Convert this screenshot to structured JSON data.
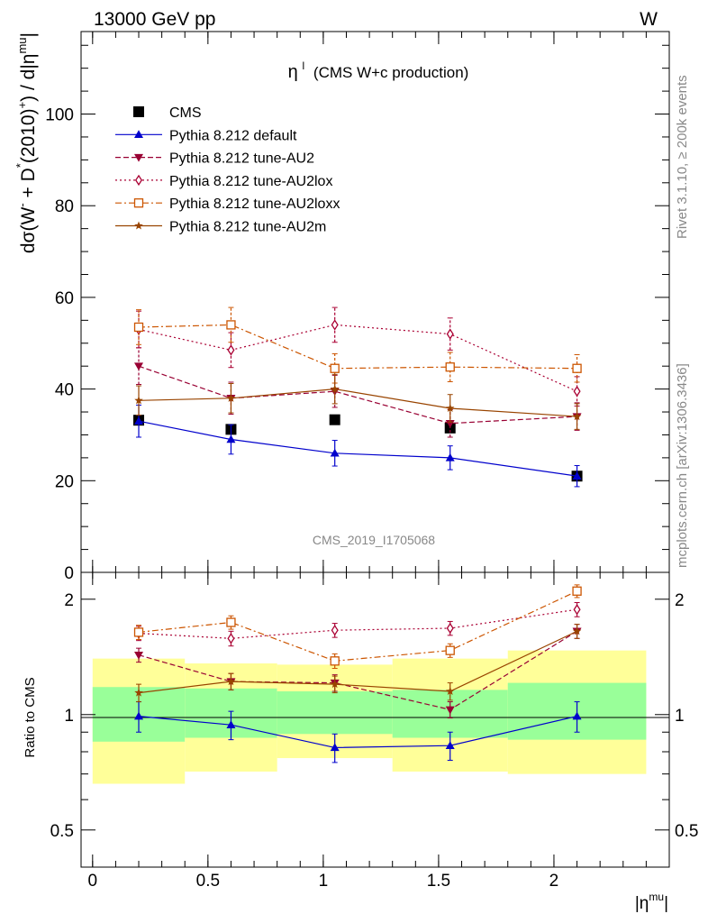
{
  "header": {
    "left": "13000 GeV pp",
    "right": "W"
  },
  "side": {
    "rivet": "Rivet 3.1.10, ≥ 200k events",
    "mcplots": "mcplots.cern.ch [arXiv:1306.3436]"
  },
  "watermark": "CMS_2019_I1705068",
  "colors": {
    "cms": "#000000",
    "default": "#0000cc",
    "au2": "#990033",
    "au2lox": "#aa0033",
    "au2loxx": "#cc5500",
    "au2m": "#994400",
    "band1": "#99ff99",
    "band2": "#ffff99"
  },
  "chart_data": [
    {
      "type": "line",
      "title": "η",
      "title_sup": "l",
      "title_rest": "(CMS W+c production)",
      "ylabel": "dσ(W⁻ + D*(2010)⁺) / d|η^mu|",
      "ylabel_parts": {
        "a": "dσ(W",
        "a_sup": "-",
        "b": " + D",
        "b_sup": "*",
        "c": "(2010)",
        "c_sup": "+",
        "d": ") / d|η",
        "d_sup": "mu",
        "e": "|"
      },
      "ylim": [
        0,
        118
      ],
      "yticks": [
        0,
        20,
        40,
        60,
        80,
        100
      ],
      "legend_position": "top-left",
      "series": [
        {
          "name": "CMS",
          "key": "cms",
          "marker": "square",
          "x": [
            0.2,
            0.6,
            1.05,
            1.55,
            2.1
          ],
          "y": [
            33.2,
            31.2,
            33.3,
            31.5,
            21.0
          ],
          "err": [
            0,
            0,
            0,
            0,
            0
          ]
        },
        {
          "name": "Pythia 8.212 default",
          "key": "default",
          "marker": "triangle-up",
          "line": "solid",
          "x": [
            0.2,
            0.6,
            1.05,
            1.55,
            2.1
          ],
          "y": [
            33.0,
            29.0,
            26.0,
            25.0,
            21.0
          ],
          "err": [
            3.5,
            3.2,
            2.8,
            2.6,
            2.3
          ]
        },
        {
          "name": "Pythia 8.212 tune-AU2",
          "key": "au2",
          "marker": "triangle-down",
          "line": "dashed",
          "x": [
            0.2,
            0.6,
            1.05,
            1.55,
            2.1
          ],
          "y": [
            45.0,
            38.0,
            39.5,
            32.5,
            34.0
          ],
          "err": [
            4.0,
            3.5,
            3.5,
            3.0,
            3.0
          ]
        },
        {
          "name": "Pythia 8.212 tune-AU2lox",
          "key": "au2lox",
          "marker": "diamond-open",
          "line": "dotted",
          "x": [
            0.2,
            0.6,
            1.05,
            1.55,
            2.1
          ],
          "y": [
            53.0,
            48.5,
            54.0,
            52.0,
            39.5
          ],
          "err": [
            4.0,
            3.8,
            3.8,
            3.5,
            3.2
          ]
        },
        {
          "name": "Pythia 8.212 tune-AU2loxx",
          "key": "au2loxx",
          "marker": "square-open",
          "line": "dashdot",
          "x": [
            0.2,
            0.6,
            1.05,
            1.55,
            2.1
          ],
          "y": [
            53.5,
            54.0,
            44.5,
            44.8,
            44.5
          ],
          "err": [
            3.8,
            3.8,
            3.2,
            3.2,
            3.0
          ]
        },
        {
          "name": "Pythia 8.212 tune-AU2m",
          "key": "au2m",
          "marker": "star",
          "line": "solid",
          "x": [
            0.2,
            0.6,
            1.05,
            1.55,
            2.1
          ],
          "y": [
            37.5,
            38.0,
            40.0,
            35.8,
            34.0
          ],
          "err": [
            3.2,
            3.2,
            3.2,
            3.0,
            2.8
          ]
        }
      ]
    },
    {
      "type": "line",
      "ylabel": "Ratio to CMS",
      "xlabel": "|η",
      "xlabel_sup": "mu",
      "xlabel_end": "|",
      "xlim": [
        -0.05,
        2.5
      ],
      "xticks": [
        0,
        0.5,
        1,
        1.5,
        2
      ],
      "xtick_labels": [
        "0",
        "0.5",
        "1",
        "1.5",
        "2"
      ],
      "ylim": [
        0.4,
        2.35
      ],
      "ylog": true,
      "yticks": [
        0.5,
        1,
        2
      ],
      "ytick_labels": [
        "0.5",
        "1",
        "2"
      ],
      "bands": [
        {
          "x0": 0.0,
          "x1": 0.4,
          "g": [
            0.85,
            1.18
          ],
          "y": [
            0.66,
            1.4
          ]
        },
        {
          "x0": 0.4,
          "x1": 0.8,
          "g": [
            0.87,
            1.17
          ],
          "y": [
            0.71,
            1.36
          ]
        },
        {
          "x0": 0.8,
          "x1": 1.3,
          "g": [
            0.89,
            1.15
          ],
          "y": [
            0.77,
            1.35
          ]
        },
        {
          "x0": 1.3,
          "x1": 1.8,
          "g": [
            0.87,
            1.16
          ],
          "y": [
            0.71,
            1.4
          ]
        },
        {
          "x0": 1.8,
          "x1": 2.4,
          "g": [
            0.86,
            1.21
          ],
          "y": [
            0.7,
            1.47
          ]
        }
      ],
      "series": [
        {
          "key": "default",
          "marker": "triangle-up",
          "line": "solid",
          "x": [
            0.2,
            0.6,
            1.05,
            1.55,
            2.1
          ],
          "y": [
            0.99,
            0.94,
            0.82,
            0.83,
            0.99
          ],
          "err": [
            0.09,
            0.08,
            0.07,
            0.07,
            0.09
          ]
        },
        {
          "key": "au2",
          "marker": "triangle-down",
          "line": "dashed",
          "x": [
            0.2,
            0.6,
            1.05,
            1.55,
            2.1
          ],
          "y": [
            1.43,
            1.22,
            1.21,
            1.03,
            1.65
          ],
          "err": [
            0.06,
            0.06,
            0.06,
            0.05,
            0.07
          ]
        },
        {
          "key": "au2lox",
          "marker": "diamond-open",
          "line": "dotted",
          "x": [
            0.2,
            0.6,
            1.05,
            1.55,
            2.1
          ],
          "y": [
            1.63,
            1.58,
            1.66,
            1.68,
            1.88
          ],
          "err": [
            0.07,
            0.07,
            0.07,
            0.07,
            0.08
          ]
        },
        {
          "key": "au2loxx",
          "marker": "square-open",
          "line": "dashdot",
          "x": [
            0.2,
            0.6,
            1.05,
            1.55,
            2.1
          ],
          "y": [
            1.64,
            1.74,
            1.38,
            1.47,
            2.1
          ],
          "err": [
            0.07,
            0.07,
            0.06,
            0.06,
            0.08
          ]
        },
        {
          "key": "au2m",
          "marker": "star",
          "line": "solid",
          "x": [
            0.2,
            0.6,
            1.05,
            1.55,
            2.1
          ],
          "y": [
            1.14,
            1.22,
            1.2,
            1.15,
            1.65
          ],
          "err": [
            0.06,
            0.06,
            0.06,
            0.06,
            0.07
          ]
        }
      ]
    }
  ]
}
